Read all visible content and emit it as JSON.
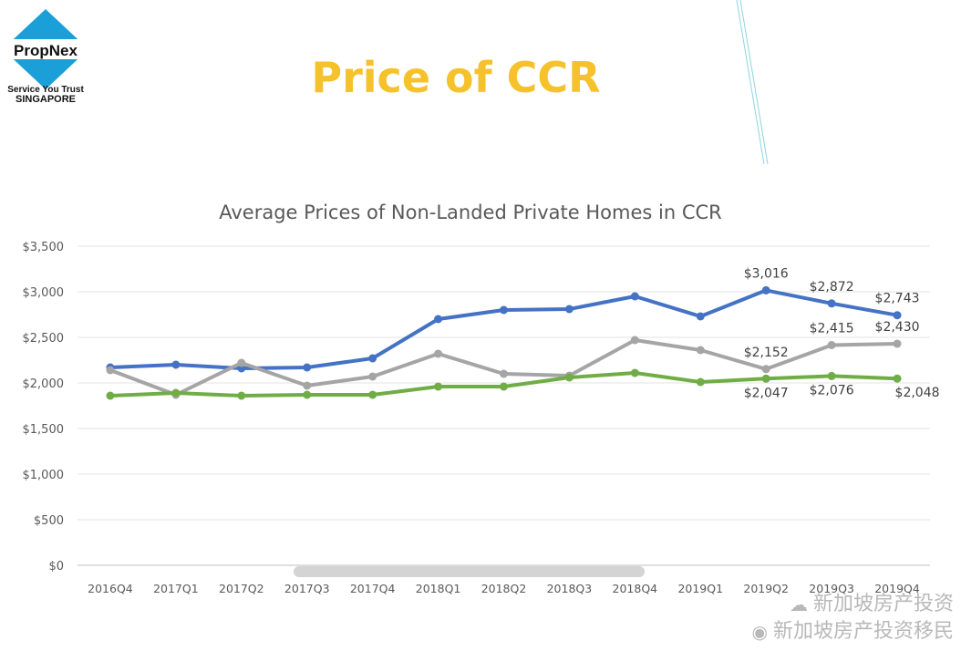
{
  "logo": {
    "brand": "PropNex",
    "tagline": "Service You Trust",
    "country": "SINGAPORE",
    "colors": {
      "diamond": "#1a9fd9",
      "text": "#111111"
    }
  },
  "slide": {
    "title": "Price of CCR",
    "title_color": "#f5c22b"
  },
  "watermark": {
    "line1": "新加坡房产投资",
    "line2": "新加坡房产投资移民",
    "icon": "weibo-icon"
  },
  "chart_data": {
    "type": "line",
    "title": "Average Prices of Non-Landed Private Homes in CCR",
    "xlabel": "",
    "ylabel": "",
    "categories": [
      "2016Q4",
      "2017Q1",
      "2017Q2",
      "2017Q3",
      "2017Q4",
      "2018Q1",
      "2018Q2",
      "2018Q3",
      "2018Q4",
      "2019Q1",
      "2019Q2",
      "2019Q3",
      "2019Q4"
    ],
    "ylim": [
      0,
      3500
    ],
    "yticks": [
      0,
      500,
      1000,
      1500,
      2000,
      2500,
      3000,
      3500
    ],
    "ytick_labels": [
      "$0",
      "$500",
      "$1,000",
      "$1,500",
      "$2,000",
      "$2,500",
      "$3,000",
      "$3,500"
    ],
    "grid": true,
    "legend": "none",
    "series": [
      {
        "color": "#4472c4",
        "values": [
          2170,
          2200,
          2160,
          2170,
          2270,
          2700,
          2800,
          2810,
          2950,
          2730,
          3016,
          2872,
          2743
        ],
        "labels": [
          "",
          "",
          "",
          "",
          "",
          "",
          "",
          "",
          "",
          "",
          "$3,016",
          "$2,872",
          "$2,743"
        ]
      },
      {
        "color": "#a5a5a5",
        "values": [
          2140,
          1870,
          2220,
          1970,
          2070,
          2320,
          2100,
          2080,
          2470,
          2360,
          2152,
          2415,
          2430
        ],
        "labels": [
          "",
          "",
          "",
          "",
          "",
          "",
          "",
          "",
          "",
          "",
          "$2,152",
          "$2,415",
          "$2,430"
        ]
      },
      {
        "color": "#70ad47",
        "values": [
          1860,
          1890,
          1860,
          1870,
          1870,
          1960,
          1960,
          2060,
          2110,
          2010,
          2047,
          2076,
          2048
        ],
        "labels": [
          "",
          "",
          "",
          "",
          "",
          "",
          "",
          "",
          "",
          "",
          "$2,047",
          "$2,076",
          "$2,048"
        ]
      }
    ]
  }
}
